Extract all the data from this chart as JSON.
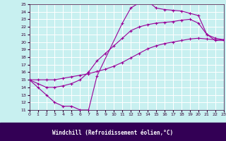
{
  "xlabel": "Windchill (Refroidissement éolien,°C)",
  "bg_color": "#c8f0f0",
  "plot_bg_color": "#c8f0f0",
  "line_color": "#990099",
  "grid_color": "#ffffff",
  "xlabel_bg": "#330055",
  "xlabel_fg": "#ffffff",
  "xlim": [
    0,
    23
  ],
  "ylim": [
    11,
    25
  ],
  "xticks": [
    0,
    1,
    2,
    3,
    4,
    5,
    6,
    7,
    8,
    9,
    10,
    11,
    12,
    13,
    14,
    15,
    16,
    17,
    18,
    19,
    20,
    21,
    22,
    23
  ],
  "yticks": [
    11,
    12,
    13,
    14,
    15,
    16,
    17,
    18,
    19,
    20,
    21,
    22,
    23,
    24,
    25
  ],
  "series1_x": [
    0,
    1,
    2,
    3,
    4,
    5,
    6,
    7,
    8,
    11,
    12,
    13,
    14,
    15,
    16,
    17,
    18,
    19,
    20,
    21,
    22,
    23
  ],
  "series1_y": [
    15,
    14,
    13,
    12,
    11.5,
    11.5,
    11,
    11,
    15.5,
    22.5,
    24.5,
    25.2,
    25.4,
    24.5,
    24.3,
    24.2,
    24.1,
    23.8,
    23.5,
    21,
    20.2,
    20.3
  ],
  "series2_x": [
    0,
    1,
    2,
    3,
    4,
    5,
    6,
    7,
    8,
    9,
    10,
    11,
    12,
    13,
    14,
    15,
    16,
    17,
    18,
    19,
    20,
    21,
    22,
    23
  ],
  "series2_y": [
    15,
    15,
    15,
    15,
    15.2,
    15.4,
    15.6,
    15.8,
    16.1,
    16.4,
    16.8,
    17.3,
    17.9,
    18.5,
    19.1,
    19.5,
    19.8,
    20.0,
    20.2,
    20.4,
    20.5,
    20.4,
    20.3,
    20.2
  ],
  "series3_x": [
    0,
    1,
    2,
    3,
    4,
    5,
    6,
    7,
    8,
    9,
    10,
    11,
    12,
    13,
    14,
    15,
    16,
    17,
    18,
    19,
    20,
    21,
    22,
    23
  ],
  "series3_y": [
    15,
    14.5,
    14.0,
    14.0,
    14.2,
    14.5,
    15.0,
    16.0,
    17.5,
    18.5,
    19.5,
    20.5,
    21.5,
    22.0,
    22.3,
    22.5,
    22.6,
    22.7,
    22.9,
    23.0,
    22.5,
    21.0,
    20.5,
    20.3
  ]
}
